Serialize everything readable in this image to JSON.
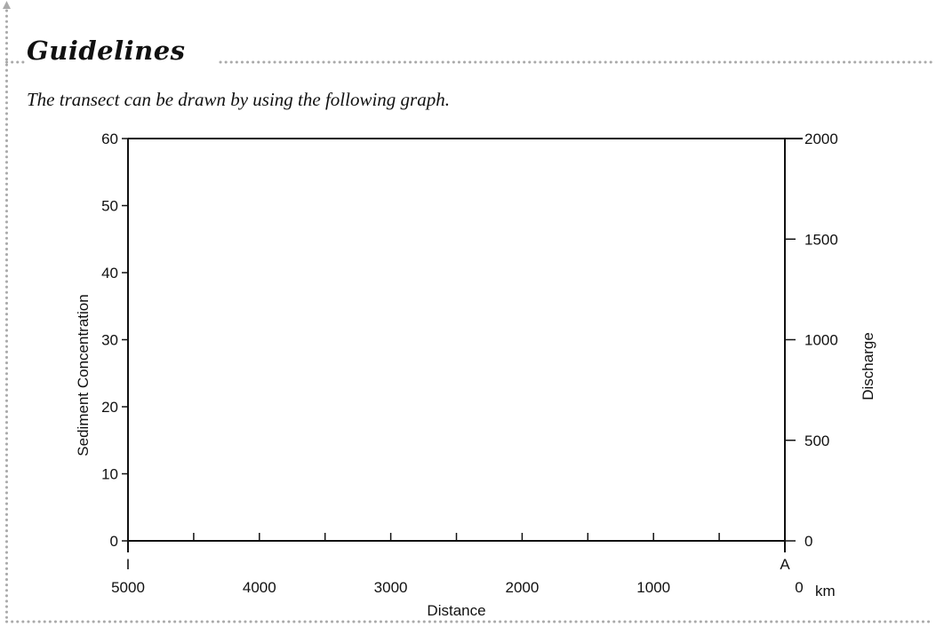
{
  "heading": "Guidelines",
  "intro": "The transect can be drawn by using the following graph.",
  "chart_data": {
    "type": "line",
    "title": "",
    "xlabel": "Distance",
    "x_unit": "km",
    "xlim": [
      5000,
      0
    ],
    "x_ticks": [
      5000,
      4000,
      3000,
      2000,
      1000,
      0
    ],
    "x_minor_step": 500,
    "x_endpoints": [
      {
        "label": "I",
        "x": 5000
      },
      {
        "label": "A",
        "x": 0
      }
    ],
    "ylabel": "Sediment Concentration",
    "ylim": [
      0,
      60
    ],
    "y_ticks": [
      0,
      10,
      20,
      30,
      40,
      50,
      60
    ],
    "y2label": "Discharge",
    "y2lim": [
      0,
      2000
    ],
    "y2_ticks": [
      0,
      500,
      1000,
      1500,
      2000
    ],
    "series": [],
    "grid": false
  },
  "colors": {
    "frame_dots": "#aaaaaa",
    "axis": "#111111"
  }
}
